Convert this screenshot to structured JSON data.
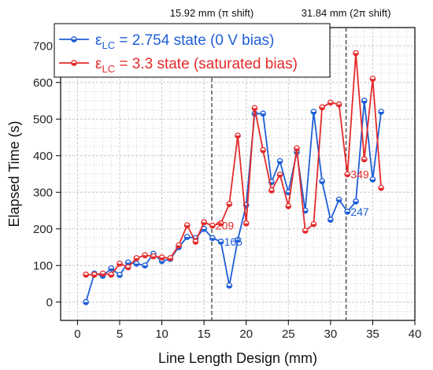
{
  "chart_data": {
    "type": "line",
    "xlabel": "Line Length Design (mm)",
    "ylabel": "Elapsed Time (s)",
    "xlim": [
      -2,
      40
    ],
    "ylim": [
      -50,
      750
    ],
    "xticks": [
      0,
      5,
      10,
      15,
      20,
      25,
      30,
      35,
      40
    ],
    "yticks": [
      0,
      100,
      200,
      300,
      400,
      500,
      600,
      700
    ],
    "grid": true,
    "legend_position": "top-left",
    "vertical_lines": [
      {
        "x": 15.92,
        "label_value": "15.92 mm",
        "label_shift": "(π shift)"
      },
      {
        "x": 31.84,
        "label_value": "31.84 mm",
        "label_shift": "(2π shift)"
      }
    ],
    "series": [
      {
        "name_prefix": "ε",
        "name_sub": "LC",
        "name_rest": " = 2.754 state (0 V bias)",
        "color": "#1f5fd6",
        "x": [
          1,
          2,
          3,
          4,
          5,
          6,
          7,
          8,
          9,
          10,
          11,
          12,
          13,
          14,
          15,
          16,
          17,
          18,
          19,
          20,
          21,
          22,
          23,
          24,
          25,
          26,
          27,
          28,
          29,
          30,
          31,
          32,
          33,
          34,
          35,
          36
        ],
        "y": [
          0,
          78,
          72,
          92,
          74,
          108,
          105,
          100,
          132,
          112,
          118,
          150,
          178,
          175,
          200,
          175,
          165,
          45,
          170,
          265,
          515,
          515,
          328,
          385,
          300,
          410,
          250,
          520,
          330,
          225,
          280,
          247,
          275,
          550,
          335,
          520
        ]
      },
      {
        "name_prefix": "ε",
        "name_sub": "LC",
        "name_rest": " = 3.3 state (saturated bias)",
        "color": "#e42b2b",
        "x": [
          1,
          2,
          3,
          4,
          5,
          6,
          7,
          8,
          9,
          10,
          11,
          12,
          13,
          14,
          15,
          16,
          17,
          18,
          19,
          20,
          21,
          22,
          23,
          24,
          25,
          26,
          27,
          28,
          29,
          30,
          31,
          32,
          33,
          34,
          35,
          36
        ],
        "y": [
          75,
          75,
          78,
          75,
          105,
          95,
          120,
          128,
          125,
          122,
          120,
          155,
          210,
          165,
          218,
          209,
          215,
          268,
          455,
          215,
          530,
          415,
          305,
          348,
          262,
          420,
          195,
          213,
          532,
          545,
          540,
          349,
          680,
          390,
          610,
          312
        ]
      }
    ],
    "annotations": [
      {
        "text": "209",
        "x": 16,
        "y": 209,
        "color": "#e42b2b"
      },
      {
        "text": "165",
        "x": 17,
        "y": 165,
        "color": "#1f5fd6"
      },
      {
        "text": "349",
        "x": 32,
        "y": 349,
        "color": "#e42b2b"
      },
      {
        "text": "247",
        "x": 32,
        "y": 247,
        "color": "#1f5fd6"
      }
    ]
  }
}
